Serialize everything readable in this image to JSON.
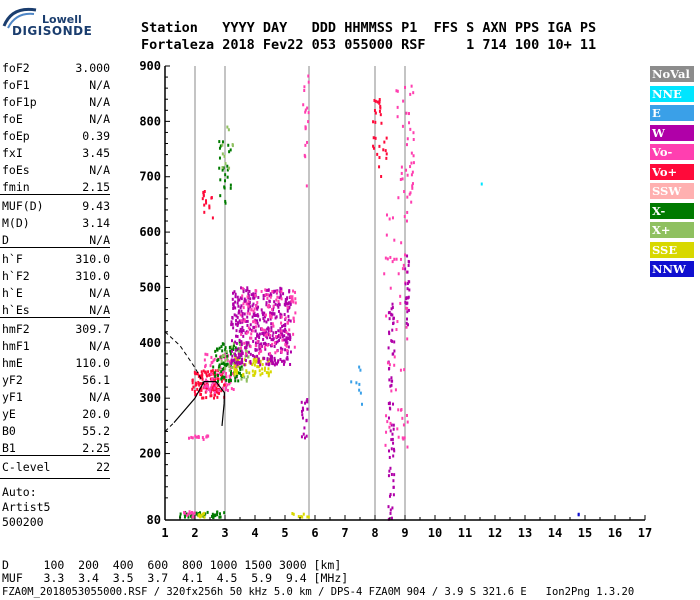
{
  "logo": {
    "top": "Lowell",
    "main": "DIGISONDE"
  },
  "header": {
    "line1": "Station   YYYY DAY   DDD HHMMSS P1  FFS S AXN PPS IGA PS",
    "line2": "Fortaleza 2018 Fev22 053 055000 RSF     1 714 100 10+ 11"
  },
  "params": [
    {
      "name": "foF2",
      "value": "3.000"
    },
    {
      "name": "foF1",
      "value": "N/A"
    },
    {
      "name": "foF1p",
      "value": "N/A"
    },
    {
      "name": "foE",
      "value": "N/A"
    },
    {
      "name": "foEp",
      "value": "0.39"
    },
    {
      "name": "fxI",
      "value": "3.45"
    },
    {
      "name": "foEs",
      "value": "N/A"
    },
    {
      "name": "fmin",
      "value": "2.15"
    },
    {
      "name": "MUF(D)",
      "value": "9.43"
    },
    {
      "name": "M(D)",
      "value": "3.14"
    },
    {
      "name": "D",
      "value": "N/A"
    },
    {
      "name": "h`F",
      "value": "310.0"
    },
    {
      "name": "h`F2",
      "value": "310.0"
    },
    {
      "name": "h`E",
      "value": "N/A"
    },
    {
      "name": "h`Es",
      "value": "N/A"
    },
    {
      "name": "hmF2",
      "value": "309.7"
    },
    {
      "name": "hmF1",
      "value": "N/A"
    },
    {
      "name": "hmE",
      "value": "110.0"
    },
    {
      "name": "yF2",
      "value": "56.1"
    },
    {
      "name": "yF1",
      "value": "N/A"
    },
    {
      "name": "yE",
      "value": "20.0"
    },
    {
      "name": "B0",
      "value": "55.2"
    },
    {
      "name": "B1",
      "value": "2.25"
    },
    {
      "name": "C-level",
      "value": "22"
    }
  ],
  "auto_note": {
    "line1": "Auto:",
    "line2": "Artist5",
    "line3": "500200"
  },
  "bottom": {
    "d_line": "D     100  200  400  600  800 1000 1500 3000 [km]",
    "muf_line": "MUF   3.3  3.4  3.5  3.7  4.1  4.5  5.9  9.4 [MHz]"
  },
  "footer": "FZA0M_2018053055000.RSF / 320fx256h 50 kHz 5.0 km / DPS-4 FZA0M 904 / 3.9 S 321.6 E   Ion2Png 1.3.20",
  "legend": [
    {
      "label": "NoVal",
      "color": "#8c8c8c"
    },
    {
      "label": "NNE",
      "color": "#00e5ff"
    },
    {
      "label": "E",
      "color": "#3aa0e8"
    },
    {
      "label": "W",
      "color": "#b000a8"
    },
    {
      "label": "Vo-",
      "color": "#ff3fb0"
    },
    {
      "label": "Vo+",
      "color": "#ff0a3a"
    },
    {
      "label": "SSW",
      "color": "#ffb0b0"
    },
    {
      "label": "X-",
      "color": "#007a00"
    },
    {
      "label": "X+",
      "color": "#8fc060"
    },
    {
      "label": "SSE",
      "color": "#d8d800"
    },
    {
      "label": "NNW",
      "color": "#1010d0"
    }
  ],
  "chart_data": {
    "type": "scatter",
    "xlim": [
      1,
      17
    ],
    "ylim": [
      80,
      900
    ],
    "x_ticks": [
      "1",
      "2",
      "3",
      "4",
      "5",
      "6",
      "7",
      "8",
      "9",
      "10",
      "11",
      "12",
      "13",
      "14",
      "15",
      "16",
      "17"
    ],
    "y_ticks": [
      "80",
      "200",
      "300",
      "400",
      "500",
      "600",
      "700",
      "800",
      "900"
    ],
    "grid_x": [
      2,
      3,
      5.8,
      8,
      9
    ],
    "clusters": [
      {
        "series": "Vo+",
        "xmin": 1.9,
        "xmax": 3.0,
        "ymin": 300,
        "ymax": 350,
        "n": 120
      },
      {
        "series": "Vo-",
        "xmin": 2.3,
        "xmax": 3.4,
        "ymin": 310,
        "ymax": 380,
        "n": 80
      },
      {
        "series": "X-",
        "xmin": 2.6,
        "xmax": 3.6,
        "ymin": 330,
        "ymax": 400,
        "n": 90
      },
      {
        "series": "X+",
        "xmin": 2.8,
        "xmax": 3.8,
        "ymin": 330,
        "ymax": 400,
        "n": 40
      },
      {
        "series": "SSE",
        "xmin": 3.3,
        "xmax": 4.6,
        "ymin": 340,
        "ymax": 375,
        "n": 60
      },
      {
        "series": "W",
        "xmin": 3.2,
        "xmax": 5.2,
        "ymin": 360,
        "ymax": 500,
        "n": 420
      },
      {
        "series": "Vo-",
        "xmin": 3.5,
        "xmax": 5.4,
        "ymin": 380,
        "ymax": 500,
        "n": 120
      },
      {
        "series": "X-",
        "xmin": 2.8,
        "xmax": 3.2,
        "ymin": 650,
        "ymax": 780,
        "n": 25
      },
      {
        "series": "X+",
        "xmin": 2.9,
        "xmax": 3.3,
        "ymin": 700,
        "ymax": 790,
        "n": 10
      },
      {
        "series": "Vo+",
        "xmin": 2.25,
        "xmax": 2.6,
        "ymin": 620,
        "ymax": 680,
        "n": 15
      },
      {
        "series": "X-",
        "xmin": 1.5,
        "xmax": 3.0,
        "ymin": 84,
        "ymax": 95,
        "n": 40
      },
      {
        "series": "Vo-",
        "xmin": 1.6,
        "xmax": 2.0,
        "ymin": 85,
        "ymax": 95,
        "n": 12
      },
      {
        "series": "SSE",
        "xmin": 2.1,
        "xmax": 2.5,
        "ymin": 85,
        "ymax": 92,
        "n": 10
      },
      {
        "series": "Vo-",
        "xmin": 1.8,
        "xmax": 2.6,
        "ymin": 224,
        "ymax": 232,
        "n": 14
      },
      {
        "series": "W",
        "xmin": 8.45,
        "xmax": 8.65,
        "ymin": 80,
        "ymax": 470,
        "n": 70
      },
      {
        "series": "Vo-",
        "xmin": 8.3,
        "xmax": 9.1,
        "ymin": 210,
        "ymax": 640,
        "n": 60
      },
      {
        "series": "Vo+",
        "xmin": 7.9,
        "xmax": 8.4,
        "ymin": 700,
        "ymax": 840,
        "n": 30
      },
      {
        "series": "Vo-",
        "xmin": 8.7,
        "xmax": 9.3,
        "ymin": 640,
        "ymax": 890,
        "n": 40
      },
      {
        "series": "W",
        "xmin": 9.0,
        "xmax": 9.15,
        "ymin": 420,
        "ymax": 560,
        "n": 25
      },
      {
        "series": "W",
        "xmin": 5.55,
        "xmax": 5.75,
        "ymin": 220,
        "ymax": 300,
        "n": 18
      },
      {
        "series": "Vo-",
        "xmin": 5.6,
        "xmax": 5.8,
        "ymin": 680,
        "ymax": 890,
        "n": 18
      },
      {
        "series": "E",
        "xmin": 7.2,
        "xmax": 7.6,
        "ymin": 280,
        "ymax": 380,
        "n": 8
      },
      {
        "series": "SSE",
        "xmin": 5.0,
        "xmax": 5.8,
        "ymin": 85,
        "ymax": 92,
        "n": 8
      },
      {
        "series": "NNW",
        "xmin": 14.75,
        "xmax": 14.85,
        "ymin": 88,
        "ymax": 92,
        "n": 2
      },
      {
        "series": "NNE",
        "xmin": 11.55,
        "xmax": 11.6,
        "ymin": 683,
        "ymax": 688,
        "n": 1
      }
    ],
    "profile_curve": [
      [
        2.9,
        250
      ],
      [
        2.97,
        290
      ],
      [
        2.98,
        310
      ],
      [
        2.7,
        330
      ],
      [
        2.3,
        330
      ],
      [
        2.0,
        300
      ],
      [
        1.3,
        256
      ]
    ],
    "profile_dash": [
      [
        1.0,
        240
      ],
      [
        1.3,
        256
      ]
    ],
    "upper_dash": [
      [
        1.0,
        420
      ],
      [
        1.5,
        395
      ],
      [
        2.0,
        355
      ],
      [
        2.3,
        325
      ]
    ]
  }
}
